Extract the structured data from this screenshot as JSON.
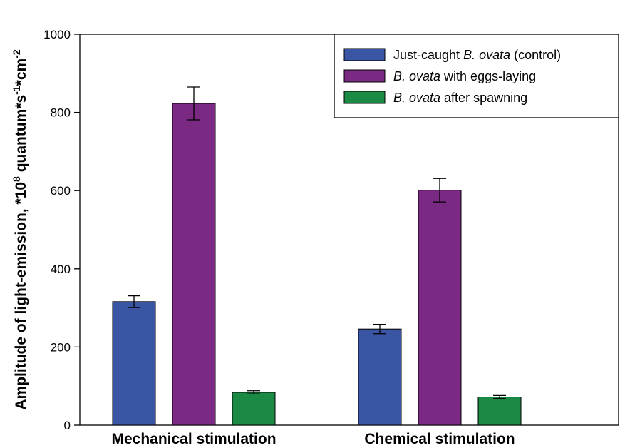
{
  "chart_data": {
    "type": "bar",
    "categories": [
      "Mechanical stimulation",
      "Chemical stimulation"
    ],
    "ylabel": {
      "base": "Amplitude of light-emission, *10",
      "sup1": "8",
      "mid1": " quantum*s",
      "sup2": "-1",
      "mid2": "*cm",
      "sup3": "-2"
    },
    "ylim": [
      0,
      1000
    ],
    "yticks": [
      0,
      200,
      400,
      600,
      800,
      1000
    ],
    "grid": false,
    "legend_position": "top-right",
    "series": [
      {
        "name": "Just-caught B. ovata (control)",
        "legend_parts": [
          {
            "text": "Just-caught ",
            "italic": false
          },
          {
            "text": "B. ovata",
            "italic": true
          },
          {
            "text": " (control)",
            "italic": false
          }
        ],
        "color": "#3a55a4",
        "values": [
          316,
          246
        ],
        "errors": [
          15,
          12
        ]
      },
      {
        "name": "B. ovata with eggs-laying",
        "legend_parts": [
          {
            "text": "B. ovata",
            "italic": true
          },
          {
            "text": " with eggs-laying",
            "italic": false
          }
        ],
        "color": "#7b2a84",
        "values": [
          823,
          601
        ],
        "errors": [
          42,
          30
        ]
      },
      {
        "name": "B. ovata after spawning",
        "legend_parts": [
          {
            "text": "B. ovata",
            "italic": true
          },
          {
            "text": " after spawning",
            "italic": false
          }
        ],
        "color": "#1a8a45",
        "values": [
          84,
          72
        ],
        "errors": [
          4,
          4
        ]
      }
    ]
  }
}
